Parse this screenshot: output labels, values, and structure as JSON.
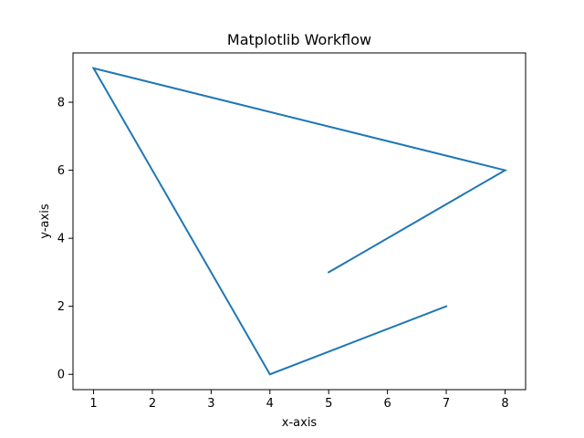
{
  "chart_data": {
    "type": "line",
    "title": "Matplotlib Workflow",
    "xlabel": "x-axis",
    "ylabel": "y-axis",
    "x": [
      5,
      8,
      1,
      4,
      7
    ],
    "series": [
      {
        "values": [
          3,
          6,
          9,
          0,
          2
        ]
      }
    ],
    "xlim": [
      0.65,
      8.35
    ],
    "ylim": [
      -0.45,
      9.45
    ],
    "xticks": [
      "1",
      "2",
      "3",
      "4",
      "5",
      "6",
      "7",
      "8"
    ],
    "yticks": [
      "0",
      "2",
      "4",
      "6",
      "8"
    ],
    "grid": false,
    "line_color": "#1f77b4"
  }
}
